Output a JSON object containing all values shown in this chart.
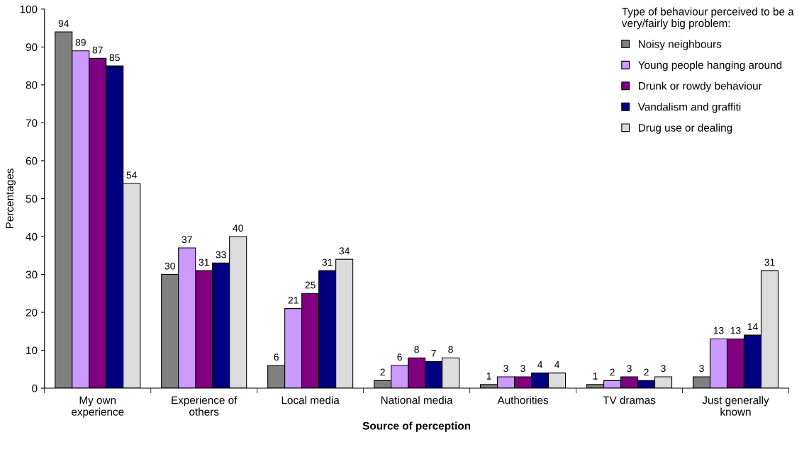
{
  "chart_data": {
    "type": "bar",
    "xlabel": "Source of perception",
    "ylabel": "Percentages",
    "legend_title": "Type of behaviour perceived to be a\nvery/fairly big problem:",
    "categories": [
      "My own\nexperience",
      "Experience of\nothers",
      "Local media",
      "National media",
      "Authorities",
      "TV dramas",
      "Just generally\nknown"
    ],
    "series": [
      {
        "name": "Noisy neighbours",
        "color": "#808080",
        "values": [
          94,
          30,
          6,
          2,
          1,
          1,
          3
        ]
      },
      {
        "name": "Young people hanging around",
        "color": "#cc99ff",
        "values": [
          89,
          37,
          21,
          6,
          3,
          2,
          13
        ]
      },
      {
        "name": "Drunk or rowdy behaviour",
        "color": "#800080",
        "values": [
          87,
          31,
          25,
          8,
          3,
          3,
          13
        ]
      },
      {
        "name": "Vandalism and graffiti",
        "color": "#000080",
        "values": [
          85,
          33,
          31,
          7,
          4,
          2,
          14
        ]
      },
      {
        "name": "Drug use or dealing",
        "color": "#dcdcdc",
        "values": [
          54,
          40,
          34,
          8,
          4,
          3,
          31
        ]
      }
    ],
    "ylim": [
      0,
      100
    ],
    "yticks": [
      0,
      10,
      20,
      30,
      40,
      50,
      60,
      70,
      80,
      90,
      100
    ],
    "data_labels": true,
    "legend": "top right",
    "grid": false
  }
}
